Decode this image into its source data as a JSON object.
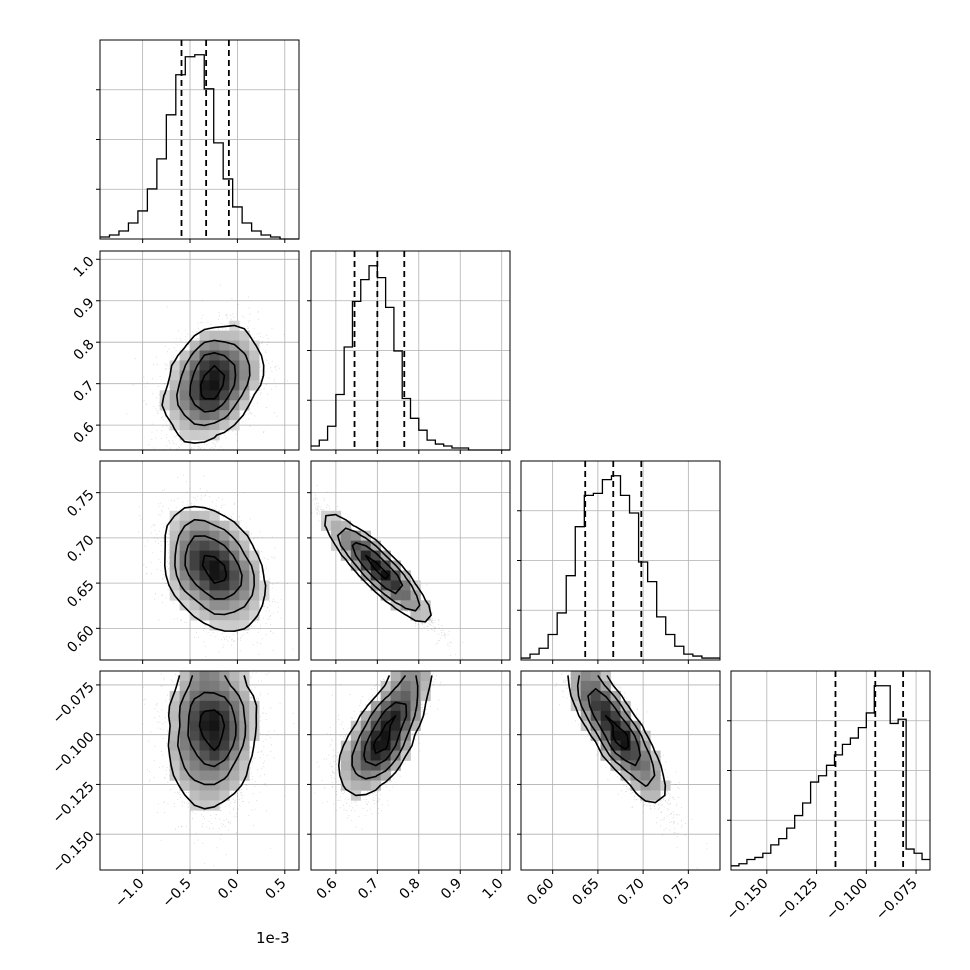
{
  "chart_data": {
    "type": "scatter",
    "title": "",
    "x_offset_label": "1e-3",
    "params": [
      {
        "ticks": [
          -1.0,
          -0.5,
          0.0,
          0.5
        ],
        "tick_labels": [
          "−1.0",
          "−0.5",
          "0.0",
          "0.5"
        ],
        "range": [
          -1.45,
          0.65
        ],
        "quantiles": [
          -0.59,
          -0.33,
          -0.09
        ],
        "histogram": {
          "bin_start": -1.45,
          "bin_width": 0.1,
          "counts": [
            1,
            2,
            4,
            8,
            14,
            25,
            40,
            62,
            82,
            91,
            92,
            75,
            48,
            30,
            16,
            8,
            4,
            2,
            1,
            0,
            0
          ]
        }
      },
      {
        "ticks": [
          0.6,
          0.7,
          0.8,
          0.9,
          1.0
        ],
        "tick_labels": [
          "0.6",
          "0.7",
          "0.8",
          "0.9",
          "1.0"
        ],
        "range": [
          0.54,
          1.02
        ],
        "quantiles": [
          0.645,
          0.7,
          0.765
        ],
        "histogram": {
          "bin_start": 0.54,
          "bin_width": 0.02,
          "counts": [
            2,
            5,
            12,
            28,
            52,
            75,
            86,
            93,
            87,
            72,
            50,
            26,
            16,
            10,
            5,
            3,
            2,
            1,
            1,
            0,
            0,
            0,
            0,
            0
          ]
        }
      },
      {
        "ticks": [
          0.6,
          0.65,
          0.7,
          0.75
        ],
        "tick_labels": [
          "0.60",
          "0.65",
          "0.70",
          "0.75"
        ],
        "range": [
          0.565,
          0.785
        ],
        "quantiles": [
          0.636,
          0.667,
          0.698
        ],
        "histogram": {
          "bin_start": 0.565,
          "bin_width": 0.01,
          "counts": [
            1,
            3,
            6,
            13,
            24,
            43,
            68,
            84,
            85,
            92,
            94,
            84,
            75,
            50,
            40,
            22,
            13,
            7,
            3,
            2,
            1,
            1
          ]
        }
      },
      {
        "ticks": [
          -0.15,
          -0.125,
          -0.1,
          -0.075
        ],
        "tick_labels": [
          "−0.150",
          "−0.125",
          "−0.100",
          "−0.075"
        ],
        "range": [
          -0.168,
          -0.068
        ],
        "quantiles": [
          -0.1155,
          -0.0955,
          -0.0815
        ],
        "histogram": {
          "bin_start": -0.168,
          "bin_width": 0.004,
          "counts": [
            2,
            3,
            5,
            6,
            8,
            12,
            15,
            20,
            26,
            32,
            42,
            45,
            50,
            55,
            60,
            63,
            68,
            75,
            88,
            88,
            70,
            72,
            10,
            8,
            5
          ]
        }
      }
    ],
    "y_tick_labels": [
      [],
      [
        "0.6",
        "0.7",
        "0.8",
        "0.9",
        "1.0"
      ],
      [
        "0.60",
        "0.65",
        "0.70",
        "0.75"
      ],
      [
        "−0.150",
        "−0.125",
        "−0.100",
        "−0.075"
      ]
    ],
    "pairs": [
      {
        "row": 1,
        "col": 0,
        "mean": [
          -0.27,
          0.7
        ],
        "sd": [
          0.24,
          0.068
        ],
        "corr": 0.32,
        "curve": 0
      },
      {
        "row": 2,
        "col": 0,
        "mean": [
          -0.25,
          0.665
        ],
        "sd": [
          0.26,
          0.032
        ],
        "corr": -0.35,
        "curve": 0
      },
      {
        "row": 2,
        "col": 1,
        "mean": [
          0.7,
          0.667
        ],
        "sd": [
          0.062,
          0.029
        ],
        "corr": -0.96,
        "curve": 0
      },
      {
        "row": 3,
        "col": 0,
        "mean": [
          -0.27,
          -0.098
        ],
        "sd": [
          0.24,
          0.02
        ],
        "corr": 0.03,
        "curve": 0
      },
      {
        "row": 3,
        "col": 1,
        "mean": [
          0.72,
          -0.1
        ],
        "sd": [
          0.055,
          0.018
        ],
        "corr": 0.75,
        "curve": -5.0
      },
      {
        "row": 3,
        "col": 2,
        "mean": [
          0.67,
          -0.098
        ],
        "sd": [
          0.028,
          0.019
        ],
        "corr": -0.88,
        "curve": 0
      }
    ],
    "grid": true,
    "legend": "none",
    "colors": {
      "points": "#000000",
      "lines": "#000000",
      "grid": "#b0b0b0",
      "hist_fill": "none"
    }
  }
}
